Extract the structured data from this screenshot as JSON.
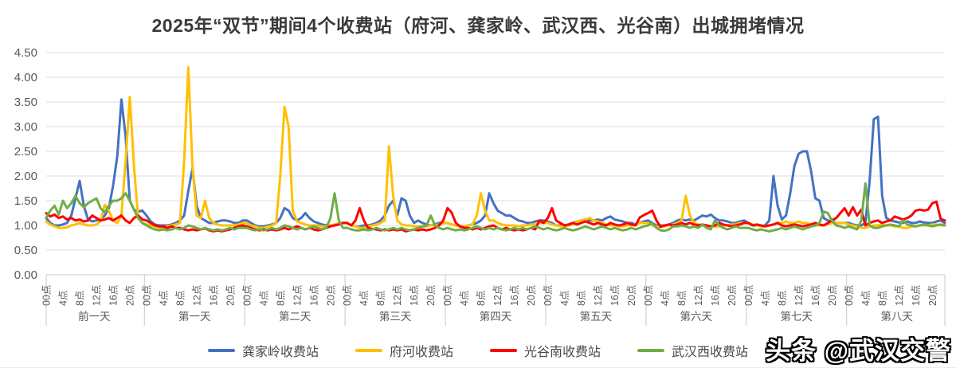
{
  "watermark": {
    "text": "头条 @武汉交警"
  },
  "chart_data": {
    "type": "line",
    "title": "2025年“双节”期间4个收费站（府河、龚家岭、武汉西、光谷南）出城拥堵情况",
    "ylim": [
      0,
      4.5
    ],
    "y_tick_labels": [
      "0.00",
      "0.50",
      "1.00",
      "1.50",
      "2.00",
      "2.50",
      "3.00",
      "3.50",
      "4.00",
      "4.50"
    ],
    "hour_labels": [
      "00点",
      "4点",
      "8点",
      "12点",
      "16点",
      "20点"
    ],
    "hours_per_day": 24,
    "label_every_hours": 4,
    "days": [
      "前一天",
      "第一天",
      "第二天",
      "第三天",
      "第四天",
      "第五天",
      "第六天",
      "第七天",
      "第八天"
    ],
    "grid": true,
    "legend_position": "bottom",
    "axis_color": "#c8c8c8",
    "grid_color": "#dcdcdc",
    "series": [
      {
        "name": "龚家岭收费站",
        "color": "#4472C4",
        "values_by_day": [
          [
            1.15,
            1.05,
            1.0,
            1.0,
            1.02,
            1.05,
            1.2,
            1.55,
            1.9,
            1.4,
            1.12,
            1.08,
            1.1,
            1.12,
            1.2,
            1.35,
            1.8,
            2.4,
            3.55,
            2.8,
            1.5,
            1.32,
            1.28,
            1.3
          ],
          [
            1.2,
            1.08,
            1.02,
            1.0,
            1.0,
            1.0,
            1.02,
            1.05,
            1.1,
            1.2,
            1.7,
            2.15,
            1.4,
            1.15,
            1.1,
            1.05,
            1.05,
            1.08,
            1.1,
            1.1,
            1.08,
            1.05,
            1.05,
            1.1
          ],
          [
            1.1,
            1.05,
            1.0,
            0.98,
            0.98,
            1.0,
            1.02,
            1.05,
            1.15,
            1.35,
            1.3,
            1.15,
            1.1,
            1.15,
            1.25,
            1.15,
            1.08,
            1.05,
            1.02,
            1.0,
            1.0,
            1.0,
            1.02,
            1.05
          ],
          [
            1.05,
            1.0,
            0.98,
            0.98,
            1.0,
            1.0,
            1.02,
            1.05,
            1.1,
            1.2,
            1.4,
            1.5,
            1.2,
            1.55,
            1.5,
            1.2,
            1.05,
            1.1,
            1.05,
            1.02,
            1.0,
            1.02,
            1.05,
            1.05
          ],
          [
            1.05,
            1.02,
            1.0,
            0.98,
            0.98,
            1.0,
            1.02,
            1.05,
            1.1,
            1.2,
            1.65,
            1.45,
            1.3,
            1.25,
            1.2,
            1.2,
            1.15,
            1.1,
            1.08,
            1.05,
            1.05,
            1.08,
            1.1,
            1.1
          ],
          [
            1.08,
            1.05,
            1.0,
            1.0,
            1.0,
            1.02,
            1.05,
            1.08,
            1.1,
            1.12,
            1.1,
            1.1,
            1.12,
            1.1,
            1.15,
            1.18,
            1.12,
            1.1,
            1.08,
            1.05,
            1.05,
            1.02,
            1.05,
            1.08
          ],
          [
            1.1,
            1.05,
            1.0,
            1.0,
            1.0,
            1.02,
            1.05,
            1.1,
            1.12,
            1.1,
            1.12,
            1.1,
            1.15,
            1.2,
            1.18,
            1.22,
            1.15,
            1.1,
            1.1,
            1.08,
            1.05,
            1.05,
            1.08,
            1.1
          ],
          [
            1.05,
            1.0,
            1.0,
            0.98,
            1.0,
            1.1,
            2.0,
            1.4,
            1.12,
            1.2,
            1.65,
            2.2,
            2.45,
            2.5,
            2.5,
            2.1,
            1.55,
            1.5,
            1.15,
            1.1,
            1.08,
            1.05,
            1.05,
            1.05
          ],
          [
            1.05,
            1.02,
            1.0,
            1.0,
            1.05,
            1.9,
            3.15,
            3.2,
            1.6,
            1.15,
            1.1,
            1.08,
            1.06,
            1.05,
            1.08,
            1.05,
            1.05,
            1.08,
            1.06,
            1.05,
            1.05,
            1.08,
            1.1,
            1.05
          ]
        ]
      },
      {
        "name": "府河收费站",
        "color": "#FFC000",
        "values_by_day": [
          [
            1.08,
            1.02,
            0.98,
            0.95,
            0.95,
            0.96,
            1.0,
            1.02,
            1.05,
            1.02,
            1.0,
            1.0,
            1.02,
            1.08,
            1.42,
            1.3,
            1.1,
            1.05,
            1.2,
            2.3,
            3.6,
            2.2,
            1.15,
            1.05
          ],
          [
            1.02,
            1.0,
            0.98,
            0.95,
            0.95,
            0.98,
            1.0,
            1.02,
            1.05,
            2.3,
            4.2,
            2.2,
            1.2,
            1.15,
            1.5,
            1.15,
            1.05,
            1.02,
            1.0,
            1.0,
            1.0,
            1.0,
            1.02,
            1.05
          ],
          [
            1.05,
            1.0,
            0.98,
            0.95,
            0.95,
            0.98,
            1.0,
            1.05,
            2.0,
            3.4,
            3.0,
            1.3,
            1.08,
            1.05,
            1.02,
            1.0,
            1.0,
            1.0,
            0.98,
            0.98,
            1.0,
            1.02,
            1.05,
            1.05
          ],
          [
            1.05,
            1.0,
            0.98,
            0.95,
            0.95,
            0.98,
            1.0,
            1.02,
            1.05,
            1.1,
            2.6,
            1.6,
            1.1,
            1.02,
            1.0,
            1.0,
            0.98,
            0.98,
            0.98,
            0.98,
            1.0,
            1.0,
            1.02,
            1.05
          ],
          [
            1.05,
            1.02,
            1.0,
            0.98,
            0.98,
            1.0,
            1.02,
            1.2,
            1.65,
            1.3,
            1.1,
            1.1,
            1.05,
            1.02,
            1.0,
            1.0,
            1.0,
            0.98,
            1.0,
            1.0,
            1.02,
            1.02,
            1.05,
            1.05
          ],
          [
            1.05,
            1.02,
            1.0,
            0.98,
            0.98,
            1.0,
            1.02,
            1.08,
            1.1,
            1.12,
            1.15,
            1.1,
            1.08,
            1.05,
            1.02,
            1.0,
            1.0,
            0.98,
            0.98,
            1.0,
            1.0,
            1.02,
            1.05,
            1.05
          ],
          [
            1.05,
            1.0,
            0.98,
            0.98,
            0.98,
            1.0,
            1.02,
            1.05,
            1.1,
            1.6,
            1.2,
            1.05,
            1.02,
            1.0,
            1.0,
            0.98,
            0.98,
            0.98,
            1.0,
            1.0,
            1.02,
            1.02,
            1.05,
            1.05
          ],
          [
            1.05,
            1.02,
            1.0,
            0.98,
            0.98,
            1.0,
            1.02,
            1.05,
            1.05,
            1.08,
            1.05,
            1.05,
            1.08,
            1.05,
            1.05,
            1.02,
            1.0,
            1.0,
            1.0,
            1.02,
            1.05,
            1.05,
            1.05,
            1.05
          ],
          [
            1.02,
            1.0,
            0.98,
            0.95,
            0.95,
            0.98,
            1.0,
            1.0,
            1.02,
            1.0,
            1.0,
            0.98,
            0.98,
            0.95,
            0.95,
            0.98,
            0.98,
            1.0,
            1.0,
            1.0,
            1.02,
            1.02,
            1.0,
            1.0
          ]
        ]
      },
      {
        "name": "光谷南收费站",
        "color": "#FF0000",
        "values_by_day": [
          [
            1.25,
            1.18,
            1.22,
            1.15,
            1.18,
            1.12,
            1.15,
            1.1,
            1.12,
            1.08,
            1.1,
            1.2,
            1.15,
            1.1,
            1.12,
            1.15,
            1.1,
            1.15,
            1.2,
            1.1,
            1.05,
            1.15,
            1.2,
            1.12
          ],
          [
            1.1,
            1.05,
            1.0,
            0.98,
            0.98,
            0.95,
            0.98,
            0.95,
            0.95,
            0.92,
            0.9,
            0.92,
            0.9,
            0.92,
            0.94,
            0.9,
            0.88,
            0.9,
            0.88,
            0.9,
            0.92,
            0.95,
            0.98,
            1.0
          ],
          [
            0.98,
            0.95,
            0.92,
            0.9,
            0.92,
            0.9,
            0.92,
            0.9,
            0.92,
            0.95,
            0.92,
            0.95,
            0.98,
            0.95,
            0.92,
            0.95,
            0.92,
            0.9,
            0.92,
            0.95,
            0.98,
            1.0,
            1.02,
            1.05
          ],
          [
            1.05,
            1.0,
            1.1,
            1.35,
            1.1,
            0.95,
            0.93,
            0.92,
            0.9,
            0.92,
            0.9,
            0.92,
            0.9,
            0.92,
            0.88,
            0.9,
            0.92,
            0.9,
            0.92,
            0.9,
            0.92,
            0.95,
            1.0,
            1.1
          ],
          [
            1.35,
            1.26,
            1.05,
            0.98,
            0.95,
            0.95,
            0.92,
            0.95,
            0.92,
            0.95,
            0.98,
            1.0,
            0.95,
            0.92,
            0.95,
            0.92,
            0.9,
            0.92,
            0.9,
            0.92,
            0.95,
            0.92,
            1.1,
            1.05
          ],
          [
            1.15,
            1.35,
            1.1,
            1.05,
            1.0,
            1.02,
            1.05,
            1.02,
            1.05,
            1.08,
            1.05,
            1.02,
            1.05,
            1.02,
            1.0,
            1.05,
            1.02,
            1.0,
            1.02,
            1.05,
            1.02,
            1.0,
            1.16,
            1.21
          ],
          [
            1.25,
            1.3,
            1.1,
            0.97,
            1.0,
            1.02,
            1.0,
            1.02,
            1.05,
            1.02,
            1.05,
            1.02,
            1.0,
            1.02,
            1.0,
            0.98,
            1.0,
            1.05,
            1.02,
            1.0,
            0.98,
            1.0,
            1.02,
            1.05
          ],
          [
            1.05,
            1.0,
            1.02,
            1.0,
            0.98,
            1.0,
            1.02,
            1.05,
            1.0,
            0.98,
            1.0,
            1.02,
            1.0,
            0.98,
            1.0,
            1.02,
            1.05,
            1.02,
            1.0,
            1.05,
            1.1,
            1.15,
            1.25,
            1.35
          ],
          [
            1.2,
            1.37,
            1.2,
            1.32,
            1.0,
            1.05,
            1.08,
            1.1,
            1.05,
            1.08,
            1.1,
            1.18,
            1.15,
            1.12,
            1.15,
            1.2,
            1.3,
            1.32,
            1.3,
            1.32,
            1.45,
            1.48,
            1.13,
            1.1
          ]
        ]
      },
      {
        "name": "武汉西收费站",
        "color": "#70AD47",
        "values_by_day": [
          [
            1.16,
            1.3,
            1.4,
            1.22,
            1.5,
            1.35,
            1.45,
            1.6,
            1.45,
            1.37,
            1.45,
            1.5,
            1.55,
            1.35,
            1.26,
            1.4,
            1.5,
            1.5,
            1.55,
            1.65,
            1.5,
            1.32,
            1.15,
            1.05
          ],
          [
            1.0,
            0.95,
            0.92,
            0.9,
            0.92,
            0.9,
            0.92,
            0.95,
            0.92,
            0.95,
            1.0,
            0.98,
            0.95,
            0.92,
            0.95,
            0.92,
            0.9,
            0.92,
            0.9,
            0.92,
            0.95,
            0.92,
            0.95,
            0.95
          ],
          [
            0.95,
            0.92,
            0.9,
            0.92,
            0.9,
            0.92,
            0.95,
            0.92,
            0.95,
            1.0,
            0.98,
            0.95,
            0.92,
            0.95,
            0.92,
            0.95,
            0.98,
            0.95,
            0.92,
            0.95,
            1.15,
            1.65,
            1.1,
            0.95
          ],
          [
            0.95,
            0.92,
            0.9,
            0.9,
            0.92,
            0.9,
            0.92,
            0.95,
            0.92,
            0.9,
            0.92,
            0.95,
            0.92,
            0.95,
            0.92,
            0.9,
            0.92,
            0.95,
            0.98,
            1.0,
            1.2,
            1.0,
            0.95,
            0.92
          ],
          [
            0.95,
            0.92,
            0.9,
            0.92,
            0.9,
            0.92,
            0.95,
            0.98,
            0.95,
            0.92,
            0.95,
            0.92,
            0.95,
            0.92,
            0.9,
            0.92,
            0.95,
            0.92,
            0.95,
            0.92,
            0.95,
            0.98,
            0.95,
            0.92
          ],
          [
            0.95,
            0.92,
            0.9,
            0.92,
            0.95,
            0.92,
            0.9,
            0.92,
            0.95,
            0.98,
            0.95,
            0.92,
            0.95,
            0.98,
            0.95,
            0.92,
            0.95,
            0.92,
            0.9,
            0.92,
            0.95,
            0.92,
            0.95,
            0.98
          ],
          [
            1.0,
            1.05,
            0.95,
            0.9,
            0.89,
            0.92,
            0.98,
            0.98,
            1.0,
            0.98,
            0.95,
            0.98,
            0.95,
            1.02,
            0.95,
            0.92,
            1.1,
            1.0,
            0.95,
            0.92,
            0.95,
            0.98,
            0.95,
            0.95
          ],
          [
            0.95,
            0.92,
            0.9,
            0.92,
            0.9,
            0.88,
            0.9,
            0.92,
            0.95,
            0.92,
            0.95,
            0.98,
            0.95,
            0.92,
            0.95,
            0.98,
            1.0,
            1.05,
            1.28,
            1.25,
            1.1,
            1.0,
            0.98,
            0.95
          ],
          [
            0.98,
            0.95,
            0.92,
            1.1,
            1.85,
            1.0,
            0.95,
            0.95,
            0.98,
            1.0,
            1.02,
            1.0,
            0.98,
            1.1,
            1.02,
            1.0,
            0.98,
            1.0,
            1.02,
            1.0,
            0.98,
            1.0,
            1.02,
            1.0
          ]
        ]
      }
    ]
  }
}
